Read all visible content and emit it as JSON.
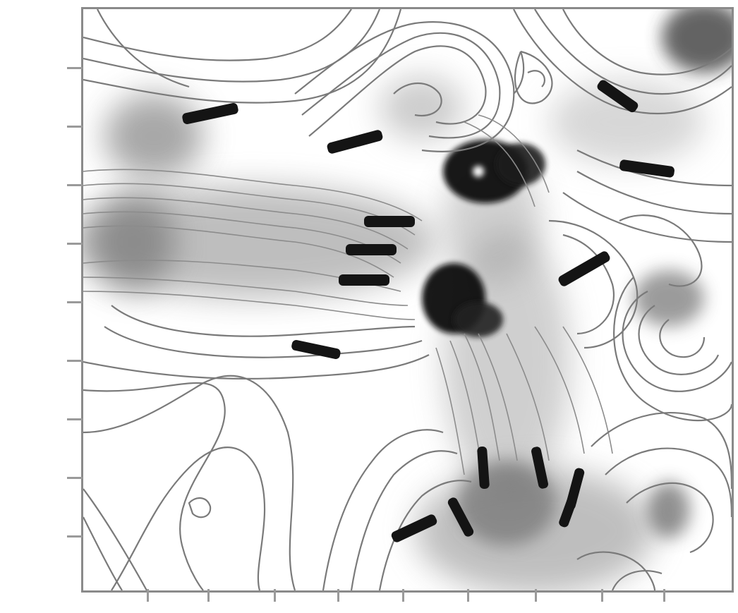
{
  "map": {
    "y_axis_labels": [
      "",
      "",
      "",
      "",
      "",
      "",
      "",
      "",
      ""
    ],
    "x_axis_labels": [
      "",
      "",
      "",
      "",
      "",
      "",
      "",
      "",
      ""
    ]
  },
  "colors": {
    "contour": "#7a7a7a",
    "anomaly_dark": "#111111",
    "anomaly_mid": "#9a9a9a",
    "frame": "#8a8a8a"
  }
}
